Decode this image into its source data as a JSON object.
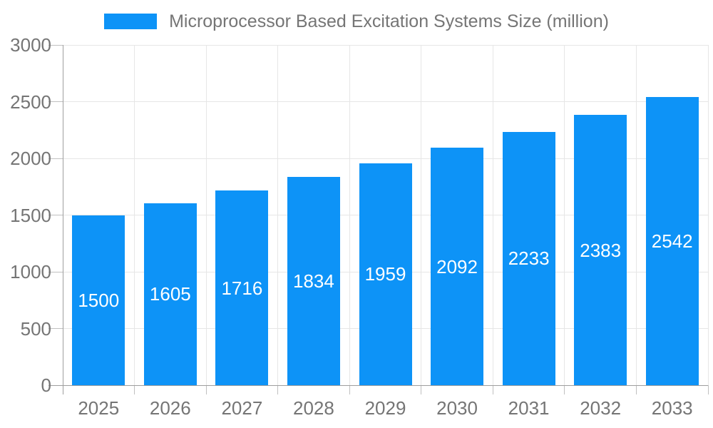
{
  "chart_data": {
    "type": "bar",
    "title": "",
    "legend_label": "Microprocessor Based Excitation Systems Size (million)",
    "legend_position": "top",
    "categories": [
      "2025",
      "2026",
      "2027",
      "2028",
      "2029",
      "2030",
      "2031",
      "2032",
      "2033"
    ],
    "values": [
      1500,
      1605,
      1716,
      1834,
      1959,
      2092,
      2233,
      2383,
      2542
    ],
    "xlabel": "",
    "ylabel": "",
    "ylim": [
      0,
      3000
    ],
    "yticks": [
      0,
      500,
      1000,
      1500,
      2000,
      2500,
      3000
    ],
    "grid": true,
    "bar_color": "#0d93f7",
    "bar_value_label_color": "#ffffff",
    "axis_text_color": "#757575",
    "gridline_color": "#e6e6e6",
    "axis_line_color": "#9e9e9e",
    "tick_color": "#c0c0c0"
  }
}
